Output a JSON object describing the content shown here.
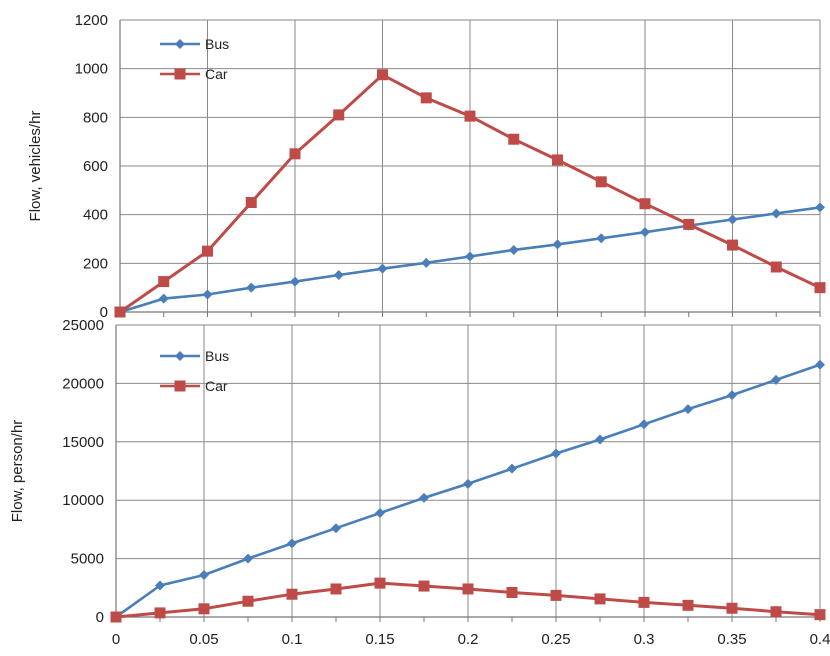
{
  "colors": {
    "bus": "#4A7EBB",
    "car": "#BE4B48",
    "grid": "#8a8a8a",
    "axis": "#777777"
  },
  "chart_data": [
    {
      "type": "line",
      "ylabel": "Flow, vehicles/hr",
      "xlabel": "",
      "xlim": [
        0,
        0.4
      ],
      "ylim": [
        0,
        1200
      ],
      "yticks": [
        "0",
        "200",
        "400",
        "600",
        "800",
        "1000",
        "1200"
      ],
      "grid": true,
      "legend_position": "top-left",
      "x": [
        0,
        0.025,
        0.05,
        0.075,
        0.1,
        0.125,
        0.15,
        0.175,
        0.2,
        0.225,
        0.25,
        0.275,
        0.3,
        0.325,
        0.35,
        0.375,
        0.4
      ],
      "series": [
        {
          "name": "Bus",
          "marker": "diamond",
          "values": [
            0,
            55,
            72,
            100,
            125,
            152,
            178,
            202,
            228,
            255,
            278,
            303,
            328,
            355,
            380,
            405,
            430
          ]
        },
        {
          "name": "Car",
          "marker": "square",
          "values": [
            0,
            125,
            250,
            450,
            650,
            810,
            975,
            880,
            805,
            710,
            625,
            535,
            445,
            360,
            275,
            185,
            100
          ]
        }
      ]
    },
    {
      "type": "line",
      "ylabel": "Flow, person/hr",
      "xlabel": "",
      "xlim": [
        0,
        0.4
      ],
      "ylim": [
        0,
        25000
      ],
      "yticks": [
        "0",
        "5000",
        "10000",
        "15000",
        "20000",
        "25000"
      ],
      "xticks": [
        "0",
        "0.05",
        "0.1",
        "0.15",
        "0.2",
        "0.25",
        "0.3",
        "0.35",
        "0.4"
      ],
      "grid": true,
      "legend_position": "top-left",
      "x": [
        0,
        0.025,
        0.05,
        0.075,
        0.1,
        0.125,
        0.15,
        0.175,
        0.2,
        0.225,
        0.25,
        0.275,
        0.3,
        0.325,
        0.35,
        0.375,
        0.4
      ],
      "series": [
        {
          "name": "Bus",
          "marker": "diamond",
          "values": [
            0,
            2700,
            3600,
            5000,
            6300,
            7600,
            8900,
            10200,
            11400,
            12700,
            14000,
            15200,
            16500,
            17800,
            19000,
            20300,
            21600
          ]
        },
        {
          "name": "Car",
          "marker": "square",
          "values": [
            0,
            350,
            700,
            1350,
            1950,
            2400,
            2900,
            2650,
            2400,
            2100,
            1850,
            1550,
            1250,
            1000,
            750,
            450,
            200
          ]
        }
      ]
    }
  ]
}
